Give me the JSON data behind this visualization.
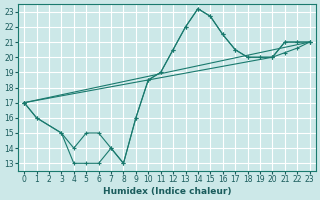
{
  "xlabel": "Humidex (Indice chaleur)",
  "bg_color": "#cce8e8",
  "grid_color": "#ffffff",
  "line_color": "#1a7a6e",
  "xlim": [
    -0.5,
    23.5
  ],
  "ylim": [
    12.5,
    23.5
  ],
  "xticks": [
    0,
    1,
    2,
    3,
    4,
    5,
    6,
    7,
    8,
    9,
    10,
    11,
    12,
    13,
    14,
    15,
    16,
    17,
    18,
    19,
    20,
    21,
    22,
    23
  ],
  "yticks": [
    13,
    14,
    15,
    16,
    17,
    18,
    19,
    20,
    21,
    22,
    23
  ],
  "series": [
    {
      "x": [
        0,
        1,
        3,
        4,
        5,
        6,
        7,
        8,
        9,
        10,
        11,
        12,
        13,
        14,
        15,
        16,
        17,
        18,
        19,
        20,
        21,
        22,
        23
      ],
      "y": [
        17,
        16,
        15,
        14,
        15,
        15,
        14,
        13,
        16,
        18.5,
        19,
        20.5,
        22,
        23.2,
        22.7,
        21.5,
        20.5,
        20,
        20,
        20,
        21,
        21,
        21
      ]
    },
    {
      "x": [
        0,
        1,
        3,
        4,
        5,
        6,
        7,
        8,
        9,
        10,
        11,
        12,
        13,
        14,
        15,
        16,
        17,
        18,
        19,
        20,
        21,
        22,
        23
      ],
      "y": [
        17,
        16,
        15,
        13,
        13,
        13,
        14,
        13,
        16,
        18.5,
        19,
        20.5,
        22,
        23.2,
        22.7,
        21.5,
        20.5,
        20,
        20,
        20,
        21,
        21,
        21
      ]
    },
    {
      "x": [
        0,
        23
      ],
      "y": [
        17,
        21
      ]
    },
    {
      "x": [
        0,
        20,
        21,
        22,
        23
      ],
      "y": [
        17,
        20,
        20.3,
        20.6,
        21
      ]
    }
  ]
}
